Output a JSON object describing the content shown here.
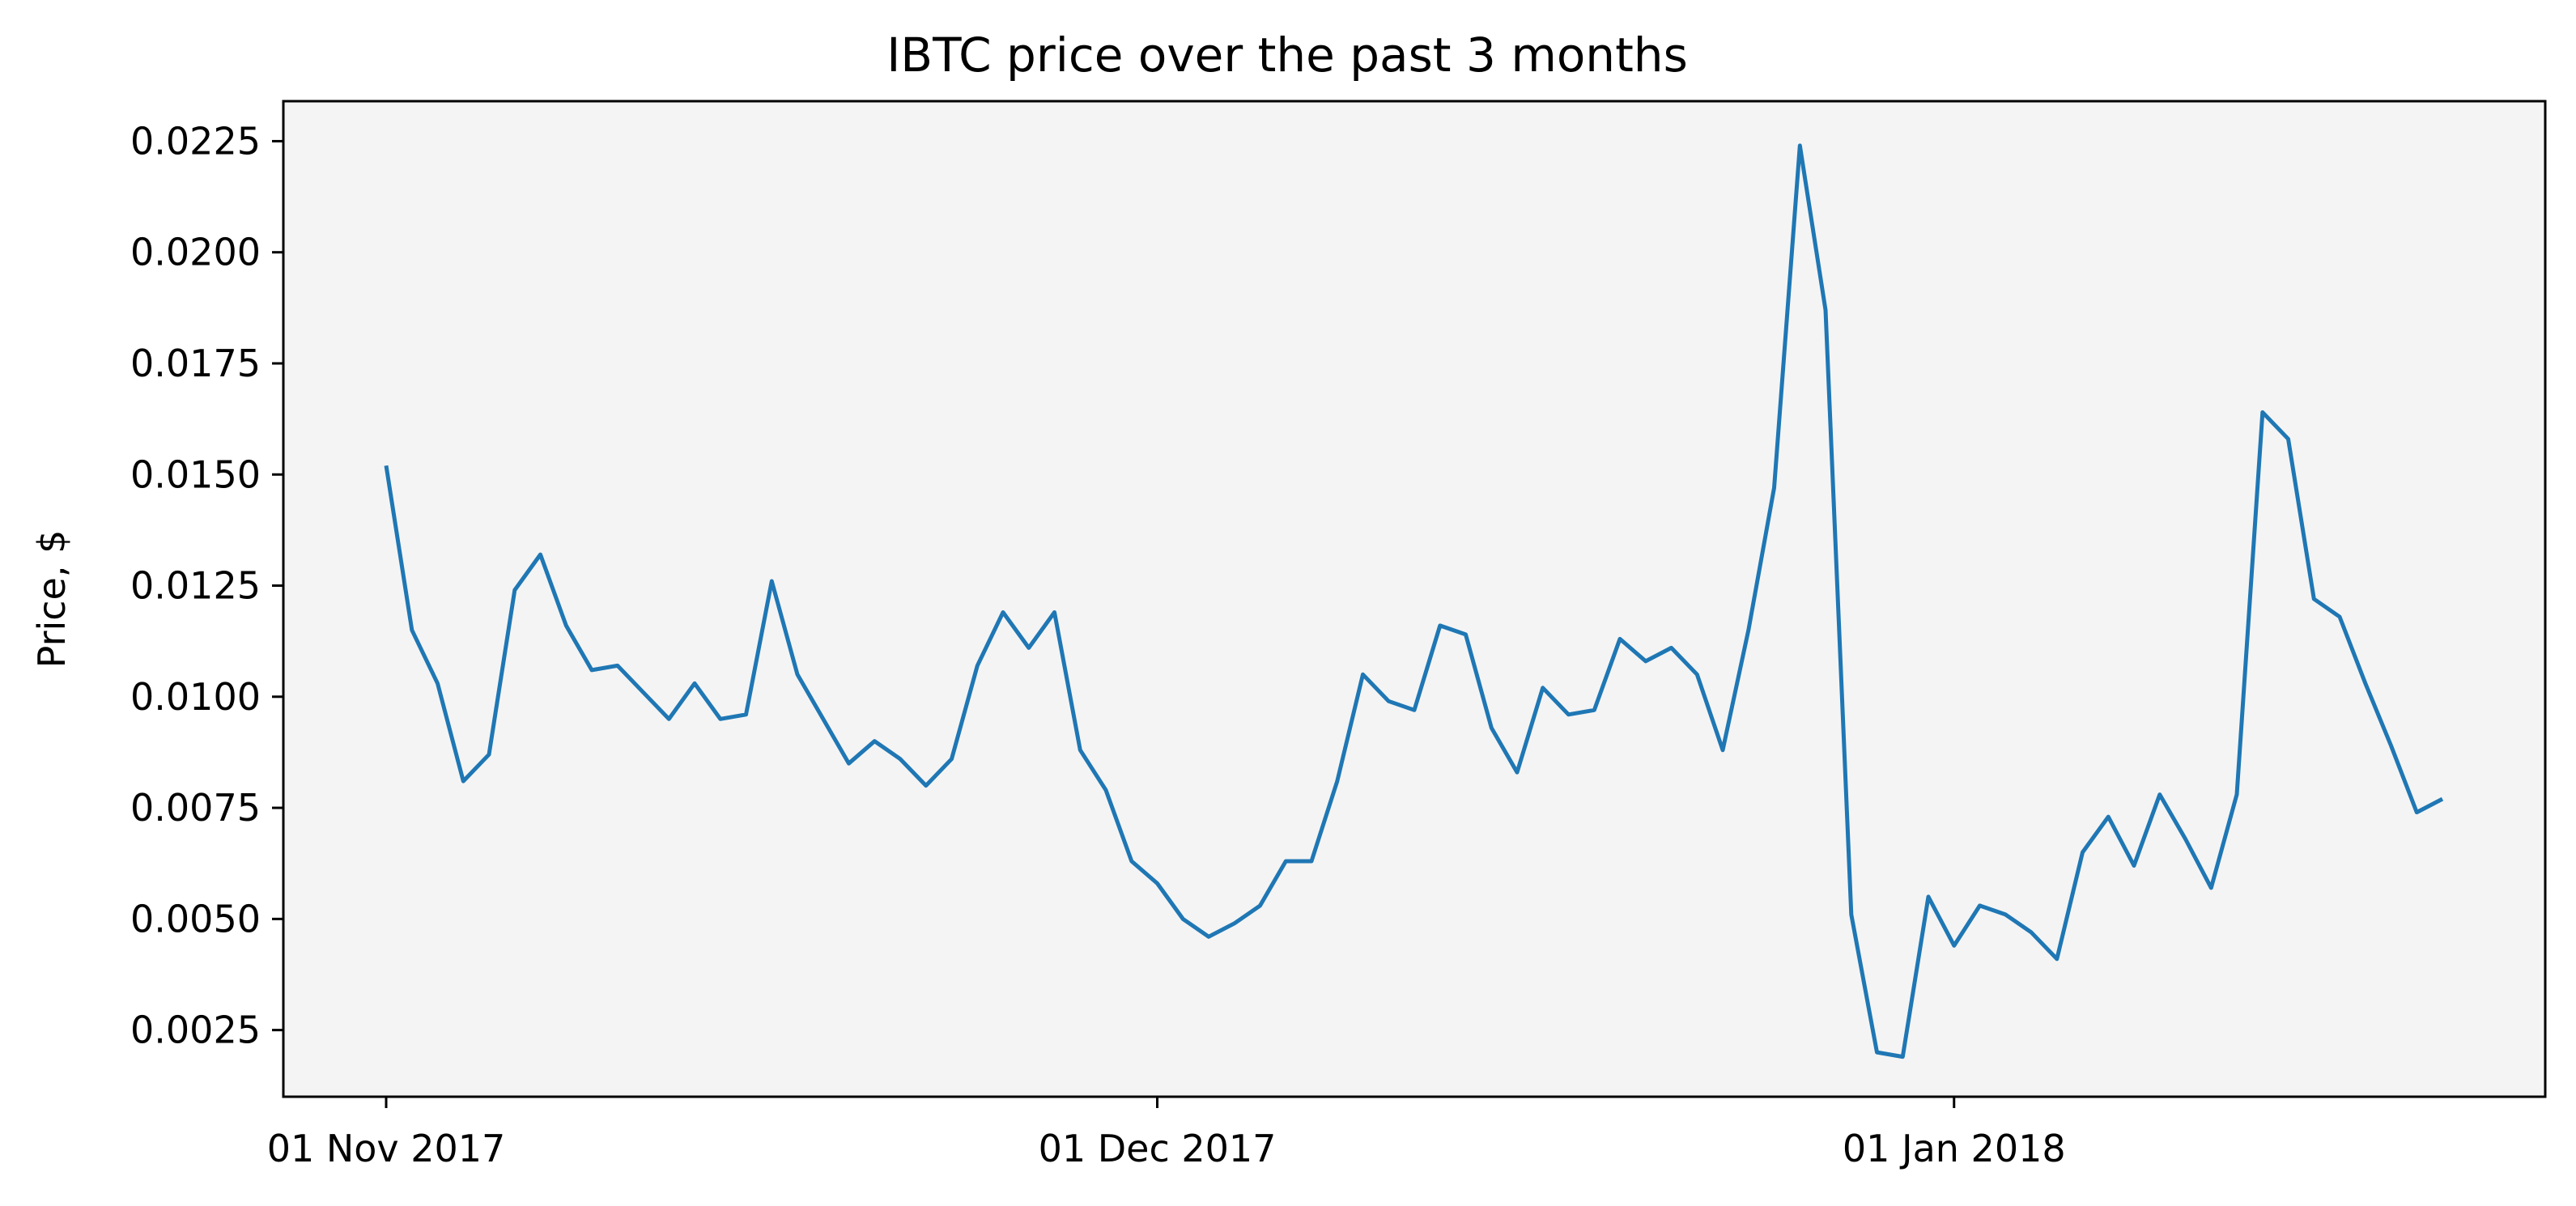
{
  "chart_data": {
    "type": "line",
    "title": "IBTC price over the past 3 months",
    "xlabel": "",
    "ylabel": "Price, $",
    "x_ticks": [
      {
        "date": "2017-11-01",
        "label": "01 Nov 2017"
      },
      {
        "date": "2017-12-01",
        "label": "01 Dec 2017"
      },
      {
        "date": "2018-01-01",
        "label": "01 Jan 2018"
      }
    ],
    "y_ticks": [
      0.0025,
      0.005,
      0.0075,
      0.01,
      0.0125,
      0.015,
      0.0175,
      0.02,
      0.0225
    ],
    "y_tick_labels": [
      "0.0025",
      "0.0050",
      "0.0075",
      "0.0100",
      "0.0125",
      "0.0150",
      "0.0175",
      "0.0200",
      "0.0225"
    ],
    "xlim": [
      "2017-10-28",
      "2018-01-24"
    ],
    "ylim": [
      0.001,
      0.0234
    ],
    "grid": false,
    "colors": {
      "line": "#1f77b4",
      "plot_background": "#f4f4f4"
    },
    "series": [
      {
        "name": "",
        "points": [
          [
            "2017-11-01",
            0.0152
          ],
          [
            "2017-11-02",
            0.0115
          ],
          [
            "2017-11-03",
            0.0103
          ],
          [
            "2017-11-04",
            0.0081
          ],
          [
            "2017-11-05",
            0.0087
          ],
          [
            "2017-11-06",
            0.0124
          ],
          [
            "2017-11-07",
            0.0132
          ],
          [
            "2017-11-08",
            0.0116
          ],
          [
            "2017-11-09",
            0.0106
          ],
          [
            "2017-11-10",
            0.0107
          ],
          [
            "2017-11-11",
            0.0101
          ],
          [
            "2017-11-12",
            0.0095
          ],
          [
            "2017-11-13",
            0.0103
          ],
          [
            "2017-11-14",
            0.0095
          ],
          [
            "2017-11-15",
            0.0096
          ],
          [
            "2017-11-16",
            0.0126
          ],
          [
            "2017-11-17",
            0.0105
          ],
          [
            "2017-11-18",
            0.0095
          ],
          [
            "2017-11-19",
            0.0085
          ],
          [
            "2017-11-20",
            0.009
          ],
          [
            "2017-11-21",
            0.0086
          ],
          [
            "2017-11-22",
            0.008
          ],
          [
            "2017-11-23",
            0.0086
          ],
          [
            "2017-11-24",
            0.0107
          ],
          [
            "2017-11-25",
            0.0119
          ],
          [
            "2017-11-26",
            0.0111
          ],
          [
            "2017-11-27",
            0.0119
          ],
          [
            "2017-11-28",
            0.0088
          ],
          [
            "2017-11-29",
            0.0079
          ],
          [
            "2017-11-30",
            0.0063
          ],
          [
            "2017-12-01",
            0.0058
          ],
          [
            "2017-12-02",
            0.005
          ],
          [
            "2017-12-03",
            0.0046
          ],
          [
            "2017-12-04",
            0.0049
          ],
          [
            "2017-12-05",
            0.0053
          ],
          [
            "2017-12-06",
            0.0063
          ],
          [
            "2017-12-07",
            0.0063
          ],
          [
            "2017-12-08",
            0.0081
          ],
          [
            "2017-12-09",
            0.0105
          ],
          [
            "2017-12-10",
            0.0099
          ],
          [
            "2017-12-11",
            0.0097
          ],
          [
            "2017-12-12",
            0.0116
          ],
          [
            "2017-12-13",
            0.0114
          ],
          [
            "2017-12-14",
            0.0093
          ],
          [
            "2017-12-15",
            0.0083
          ],
          [
            "2017-12-16",
            0.0102
          ],
          [
            "2017-12-17",
            0.0096
          ],
          [
            "2017-12-18",
            0.0097
          ],
          [
            "2017-12-19",
            0.0113
          ],
          [
            "2017-12-20",
            0.0108
          ],
          [
            "2017-12-21",
            0.0111
          ],
          [
            "2017-12-22",
            0.0105
          ],
          [
            "2017-12-23",
            0.0088
          ],
          [
            "2017-12-24",
            0.0115
          ],
          [
            "2017-12-25",
            0.0147
          ],
          [
            "2017-12-26",
            0.0224
          ],
          [
            "2017-12-27",
            0.0187
          ],
          [
            "2017-12-28",
            0.0051
          ],
          [
            "2017-12-29",
            0.002
          ],
          [
            "2017-12-30",
            0.0019
          ],
          [
            "2017-12-31",
            0.0055
          ],
          [
            "2018-01-01",
            0.0044
          ],
          [
            "2018-01-02",
            0.0053
          ],
          [
            "2018-01-03",
            0.0051
          ],
          [
            "2018-01-04",
            0.0047
          ],
          [
            "2018-01-05",
            0.0041
          ],
          [
            "2018-01-06",
            0.0065
          ],
          [
            "2018-01-07",
            0.0073
          ],
          [
            "2018-01-08",
            0.0062
          ],
          [
            "2018-01-09",
            0.0078
          ],
          [
            "2018-01-10",
            0.0068
          ],
          [
            "2018-01-11",
            0.0057
          ],
          [
            "2018-01-12",
            0.0078
          ],
          [
            "2018-01-13",
            0.0164
          ],
          [
            "2018-01-14",
            0.0158
          ],
          [
            "2018-01-15",
            0.0122
          ],
          [
            "2018-01-16",
            0.0118
          ],
          [
            "2018-01-17",
            0.0103
          ],
          [
            "2018-01-18",
            0.0089
          ],
          [
            "2018-01-19",
            0.0074
          ],
          [
            "2018-01-20",
            0.0077
          ]
        ]
      }
    ]
  }
}
